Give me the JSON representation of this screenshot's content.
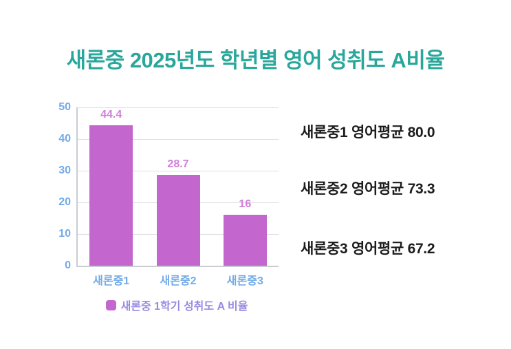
{
  "title": "새론중 2025년도 학년별 영어 성취도 A비율",
  "chart_data": {
    "type": "bar",
    "title": "새론중 2025년도 학년별 영어 성취도 A비율",
    "categories": [
      "새론중1",
      "새론중2",
      "새론중3"
    ],
    "values": [
      44.4,
      28.7,
      16
    ],
    "value_labels": [
      "44.4",
      "28.7",
      "16"
    ],
    "xlabel": "",
    "ylabel": "",
    "ylim": [
      0,
      50
    ],
    "yticks": [
      0,
      10,
      20,
      30,
      40,
      50
    ],
    "grid": true,
    "legend": {
      "label": "새론중 1학기 성취도 A 비율",
      "position": "bottom"
    }
  },
  "annotations": [
    {
      "text": "새론중1 영어평균 80.0"
    },
    {
      "text": "새론중2 영어평균 73.3"
    },
    {
      "text": "새론중3 영어평균 67.2"
    }
  ],
  "colors": {
    "title": "#2aa79b",
    "bar": "#c366cd",
    "bar_label": "#d07fd8",
    "axis_label": "#72aae8",
    "legend_text": "#998ae2",
    "grid": "#dddee1",
    "axis": "#c9ccd2",
    "text": "#1c1c1c",
    "background": "#ffffff"
  }
}
